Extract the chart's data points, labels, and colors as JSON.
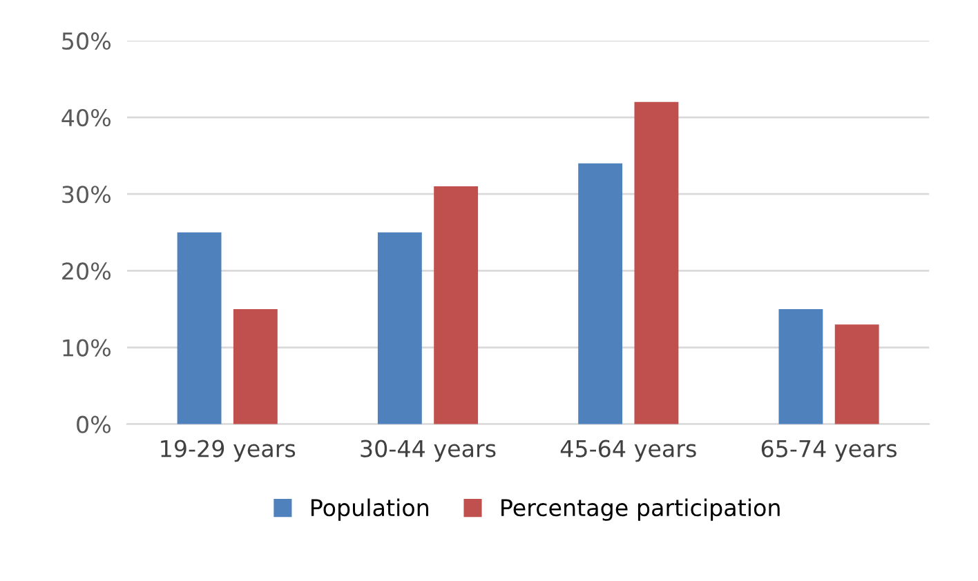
{
  "chart_data": {
    "type": "bar",
    "categories": [
      "19-29 years",
      "30-44 years",
      "45-64 years",
      "65-74 years"
    ],
    "series": [
      {
        "name": "Population",
        "color": "#4f81bd",
        "values": [
          25,
          25,
          34,
          15
        ]
      },
      {
        "name": "Percentage participation",
        "color": "#c0504d",
        "values": [
          15,
          31,
          42,
          13
        ]
      }
    ],
    "ylim": [
      0,
      50
    ],
    "yticks": [
      {
        "value": 0,
        "label": "0%"
      },
      {
        "value": 10,
        "label": "10%"
      },
      {
        "value": 20,
        "label": "20%"
      },
      {
        "value": 30,
        "label": "30%"
      },
      {
        "value": 40,
        "label": "40%"
      },
      {
        "value": 50,
        "label": "50%"
      }
    ],
    "grid": "y",
    "legend": "bottom"
  }
}
